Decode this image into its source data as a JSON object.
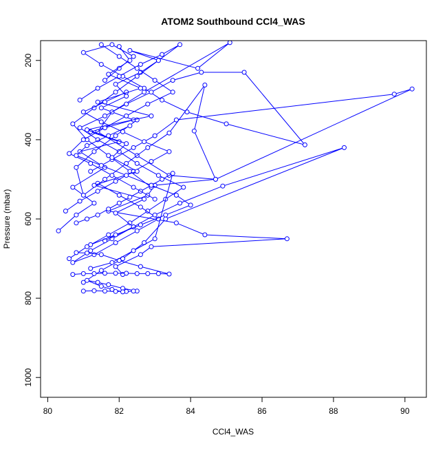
{
  "chart_data": {
    "type": "scatter",
    "title": "ATOM2 Southbound CCl4_WAS",
    "xlabel": "CCl4_WAS",
    "ylabel": "Pressure (mbar)",
    "xlim": [
      79.8,
      90.6
    ],
    "ylim": [
      1050,
      150
    ],
    "y_reversed": true,
    "x_ticks": [
      80,
      82,
      84,
      86,
      88,
      90
    ],
    "y_ticks": [
      200,
      400,
      600,
      800,
      1000
    ],
    "grid": false,
    "legend": "none",
    "series_color": "#0000ff",
    "series": [
      {
        "x": [
          80.3,
          80.8,
          81.3,
          80.7,
          81.6,
          80.9,
          82.0,
          81.2,
          82.4,
          81.5,
          82.2,
          81.9,
          82.6,
          83.1,
          82.3,
          84.2,
          85.1,
          82.7,
          81.8,
          81.4,
          82.5,
          83.4,
          84.7,
          83.0,
          82.8,
          81.7,
          83.6,
          84.4,
          86.7,
          82.9,
          82.6,
          81.9,
          82.1
        ],
        "y": [
          630,
          590,
          560,
          520,
          470,
          430,
          405,
          380,
          350,
          320,
          290,
          260,
          230,
          200,
          175,
          220,
          155,
          280,
          330,
          380,
          440,
          490,
          500,
          515,
          540,
          580,
          610,
          640,
          650,
          670,
          690,
          720,
          740
        ]
      },
      {
        "x": [
          80.6,
          81.1,
          81.7,
          82.3,
          82.8,
          83.3,
          83.8,
          83.1,
          82.5,
          82.0,
          81.4,
          80.9,
          81.6,
          82.2,
          82.9,
          83.5,
          84.3,
          85.5,
          87.2,
          85.0,
          83.9,
          83.2,
          82.7,
          82.1,
          81.5,
          81.0,
          81.8,
          82.4,
          82.0,
          81.6
        ],
        "y": [
          700,
          670,
          640,
          610,
          580,
          550,
          520,
          490,
          460,
          430,
          400,
          370,
          340,
          310,
          280,
          250,
          230,
          230,
          413,
          360,
          330,
          300,
          270,
          240,
          210,
          180,
          160,
          190,
          220,
          250
        ]
      },
      {
        "x": [
          81.0,
          81.5,
          82.1,
          82.7,
          83.3,
          88.3,
          84.9,
          83.7,
          83.0,
          82.4,
          81.8,
          81.2,
          80.7,
          81.3,
          81.9,
          82.5,
          83.1,
          82.6,
          82.0,
          81.4
        ],
        "y": [
          760,
          730,
          700,
          660,
          600,
          420,
          517,
          560,
          590,
          620,
          650,
          680,
          710,
          690,
          660,
          630,
          600,
          570,
          540,
          510
        ]
      },
      {
        "x": [
          81.2,
          81.8,
          82.4,
          83.0,
          83.6,
          89.7,
          90.2,
          84.7,
          84.1,
          84.4,
          83.4,
          82.8,
          82.2,
          81.6,
          81.0,
          80.8,
          81.3,
          81.9,
          82.5
        ],
        "y": [
          480,
          450,
          420,
          390,
          350,
          285,
          272,
          500,
          378,
          262,
          383,
          420,
          460,
          500,
          540,
          470,
          430,
          390,
          350
        ]
      },
      {
        "x": [
          80.9,
          81.4,
          82.0,
          82.6,
          83.2,
          83.7,
          83.1,
          82.5,
          81.9,
          81.3,
          80.7,
          81.1,
          81.7,
          82.3,
          82.9
        ],
        "y": [
          300,
          270,
          240,
          210,
          185,
          160,
          200,
          240,
          280,
          320,
          360,
          400,
          440,
          480,
          520
        ]
      },
      {
        "x": [
          80.7,
          81.0,
          81.3,
          81.6,
          81.9,
          82.2,
          82.5,
          82.8,
          83.1,
          83.4,
          82.6,
          82.0,
          81.5,
          81.1,
          80.8
        ],
        "y": [
          740,
          738,
          738,
          737,
          737,
          737,
          738,
          738,
          738,
          739,
          720,
          705,
          690,
          686,
          685
        ]
      },
      {
        "x": [
          81.0,
          81.3,
          81.6,
          81.9,
          82.2,
          82.5,
          82.1,
          81.7,
          81.4,
          81.1,
          81.5,
          81.8,
          82.1,
          82.4
        ],
        "y": [
          782,
          781,
          782,
          783,
          783,
          782,
          775,
          766,
          760,
          755,
          770,
          778,
          784,
          782
        ]
      },
      {
        "x": [
          80.8,
          81.1,
          81.4,
          81.7,
          82.0,
          82.3,
          82.6,
          82.9,
          83.2,
          83.5,
          83.0,
          82.4,
          81.8,
          81.2
        ],
        "y": [
          610,
          600,
          590,
          575,
          560,
          545,
          530,
          515,
          500,
          485,
          650,
          680,
          710,
          725
        ]
      },
      {
        "x": [
          81.5,
          82.0,
          82.5,
          83.0,
          83.5,
          82.8,
          82.2,
          81.6,
          81.0,
          80.6,
          81.2,
          81.8,
          82.4,
          83.0
        ],
        "y": [
          160,
          190,
          220,
          250,
          280,
          310,
          340,
          370,
          400,
          435,
          460,
          490,
          520,
          550
        ]
      },
      {
        "x": [
          80.5,
          80.9,
          81.4,
          81.9,
          82.4,
          82.9,
          83.4,
          82.7,
          82.1,
          81.5,
          81.0,
          81.6,
          82.2
        ],
        "y": [
          580,
          555,
          530,
          505,
          480,
          455,
          430,
          405,
          380,
          355,
          330,
          305,
          280
        ]
      },
      {
        "x": [
          82.0,
          82.3,
          81.7,
          82.6,
          81.4,
          82.9,
          81.1,
          82.2,
          81.8,
          82.5,
          81.3,
          82.7,
          81.9,
          82.4,
          81.6
        ],
        "y": [
          165,
          200,
          235,
          270,
          305,
          340,
          375,
          410,
          445,
          480,
          515,
          550,
          585,
          620,
          655
        ]
      },
      {
        "x": [
          81.2,
          81.9,
          82.6,
          83.3,
          84.0,
          83.6,
          82.9,
          82.2,
          81.5,
          80.8,
          81.1,
          81.7,
          82.3
        ],
        "y": [
          665,
          640,
          615,
          590,
          565,
          540,
          515,
          490,
          465,
          440,
          415,
          390,
          365
        ]
      }
    ]
  }
}
